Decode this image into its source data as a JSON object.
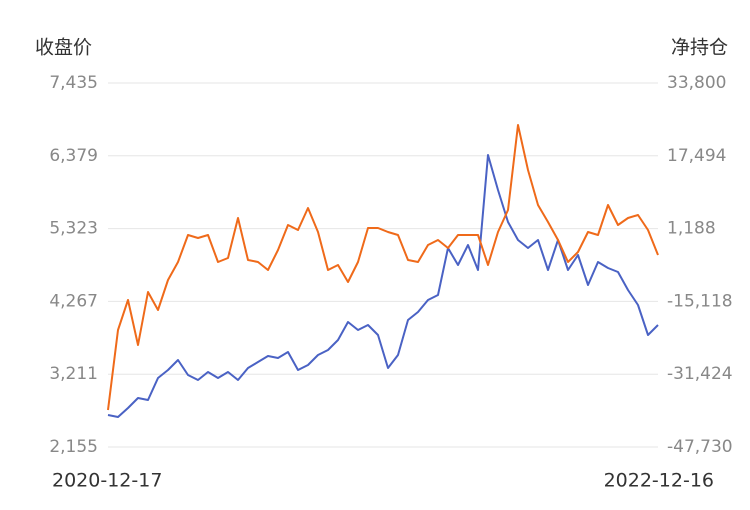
{
  "chart_data": {
    "type": "line",
    "y_label": "收盘价",
    "y2_label": "净持仓",
    "categories": [
      "2020-12-17",
      null,
      null,
      null,
      null,
      null,
      null,
      null,
      null,
      null,
      null,
      null,
      null,
      null,
      null,
      null,
      null,
      null,
      null,
      null,
      null,
      null,
      null,
      null,
      null,
      null,
      null,
      null,
      null,
      null,
      null,
      null,
      null,
      null,
      null,
      null,
      null,
      null,
      null,
      null,
      null,
      null,
      null,
      null,
      null,
      null,
      null,
      null,
      null,
      null,
      null,
      null,
      null,
      null,
      null,
      "2022-12-16"
    ],
    "ylim": [
      2155,
      7435
    ],
    "yticks": [
      {
        "value": 2155,
        "label": "2,155"
      },
      {
        "value": 3211,
        "label": "3,211"
      },
      {
        "value": 4267,
        "label": "4,267"
      },
      {
        "value": 5323,
        "label": "5,323"
      },
      {
        "value": 6379,
        "label": "6,379"
      },
      {
        "value": 7435,
        "label": "7,435"
      }
    ],
    "y2lim": [
      -47730,
      33800
    ],
    "y2ticks": [
      {
        "value": -47730,
        "label": "-47,730"
      },
      {
        "value": -31424,
        "label": "-31,424"
      },
      {
        "value": -15118,
        "label": "-15,118"
      },
      {
        "value": 1188,
        "label": "1,188"
      },
      {
        "value": 17494,
        "label": "17,494"
      },
      {
        "value": 33800,
        "label": "33,800"
      }
    ],
    "grid": true,
    "series": [
      {
        "name": "收盘价",
        "color": "#4a62c4",
        "values": [
          2619,
          2590,
          2721,
          2866,
          2837,
          3156,
          3272,
          3417,
          3199,
          3127,
          3243,
          3156,
          3243,
          3127,
          3301,
          3388,
          3475,
          3446,
          3533,
          3272,
          3344,
          3489,
          3562,
          3707,
          3968,
          3852,
          3925,
          3780,
          3301,
          3489,
          3997,
          4113,
          4287,
          4360,
          5041,
          4795,
          5085,
          4722,
          6390,
          5883,
          5419,
          5158,
          5041,
          5158,
          4722,
          5158,
          4722,
          4940,
          4505,
          4838,
          4751,
          4693,
          4432,
          4215,
          3780,
          3925
        ]
      },
      {
        "name": "净持仓",
        "color": "#ef6a1a",
        "axis": "y2",
        "values": [
          -39443,
          -21524,
          -14805,
          -24884,
          -13013,
          -17045,
          -10325,
          -6294,
          -246,
          -918,
          -246,
          -6294,
          -5398,
          3561,
          -5846,
          -6294,
          -8086,
          -3606,
          1994,
          874,
          5801,
          426,
          -8086,
          -6966,
          -10773,
          -6294,
          1322,
          1322,
          426,
          -246,
          -5846,
          -6294,
          -2486,
          -1366,
          -3158,
          -246,
          -246,
          -246,
          -6966,
          426,
          5353,
          24392,
          14312,
          6473,
          2666,
          -1366,
          -6294,
          -4054,
          426,
          -246,
          6473,
          1994,
          3561,
          4233,
          874,
          -4726
        ]
      }
    ]
  }
}
